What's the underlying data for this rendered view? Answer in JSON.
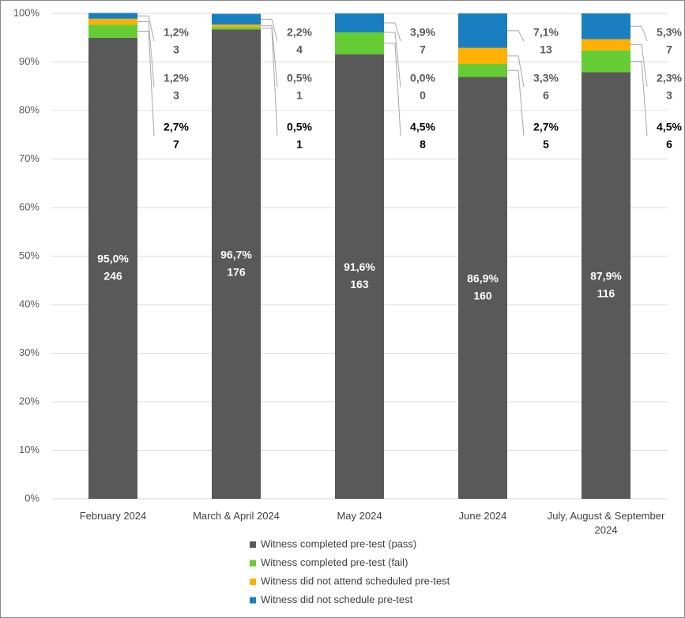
{
  "chart_data": {
    "type": "stacked_bar",
    "categories": [
      "February 2024",
      "March & April 2024",
      "May 2024",
      "June 2024",
      "July, August & September 2024"
    ],
    "series": [
      {
        "name": "Witness completed pre-test (pass)",
        "color": "#595959",
        "values": [
          95.0,
          96.7,
          91.6,
          86.9,
          87.9
        ],
        "value_labels": [
          "95,0%",
          "96,7%",
          "91,6%",
          "86,9%",
          "87,9%"
        ],
        "counts": [
          246,
          176,
          163,
          160,
          116
        ]
      },
      {
        "name": "Witness completed pre-test (fail)",
        "color": "#66cc33",
        "values": [
          2.7,
          0.5,
          4.5,
          2.7,
          4.5
        ],
        "value_labels": [
          "2,7%",
          "0,5%",
          "4,5%",
          "2,7%",
          "4,5%"
        ],
        "counts": [
          7,
          1,
          8,
          5,
          6
        ]
      },
      {
        "name": "Witness did not attend scheduled pre-test",
        "color": "#ffb000",
        "values": [
          1.2,
          0.5,
          0.0,
          3.3,
          2.3
        ],
        "value_labels": [
          "1,2%",
          "0,5%",
          "0,0%",
          "3,3%",
          "2,3%"
        ],
        "counts": [
          3,
          1,
          0,
          6,
          3
        ]
      },
      {
        "name": "Witness did not schedule pre-test",
        "color": "#1a7fc1",
        "values": [
          1.2,
          2.2,
          3.9,
          7.1,
          5.3
        ],
        "value_labels": [
          "1,2%",
          "2,2%",
          "3,9%",
          "7,1%",
          "5,3%"
        ],
        "counts": [
          3,
          4,
          7,
          13,
          7
        ]
      }
    ],
    "ylim": [
      0,
      100
    ],
    "yticks": [
      {
        "value": 0,
        "label": "0%"
      },
      {
        "value": 10,
        "label": "10%"
      },
      {
        "value": 20,
        "label": "20%"
      },
      {
        "value": 30,
        "label": "30%"
      },
      {
        "value": 40,
        "label": "40%"
      },
      {
        "value": 50,
        "label": "50%"
      },
      {
        "value": 60,
        "label": "60%"
      },
      {
        "value": 70,
        "label": "70%"
      },
      {
        "value": 80,
        "label": "80%"
      },
      {
        "value": 90,
        "label": "90%"
      },
      {
        "value": 100,
        "label": "100%"
      }
    ],
    "grid": true,
    "legend": "bottom"
  }
}
